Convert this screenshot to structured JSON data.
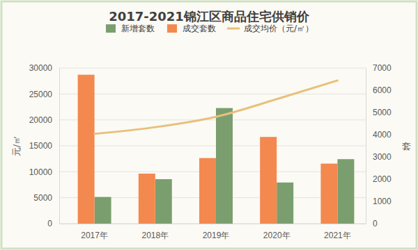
{
  "chart_data": {
    "type": "bar",
    "title": "2017-2021锦江区商品住宅供销价",
    "y_label": "元/㎡",
    "y2_label": "套",
    "categories": [
      "2017年",
      "2018年",
      "2019年",
      "2020年",
      "2021年"
    ],
    "series": [
      {
        "name": "新增套数",
        "type": "bar",
        "axis": "y2",
        "color": "#7b9e6f",
        "values": [
          1200,
          2000,
          5200,
          1850,
          2900
        ]
      },
      {
        "name": "成交套数",
        "type": "bar",
        "axis": "y2",
        "color": "#f3894f",
        "values": [
          6700,
          2250,
          2950,
          3900,
          2700
        ]
      },
      {
        "name": "成交均价（元/㎡）",
        "type": "line",
        "color": "#e8c07c",
        "values": [
          17300,
          18600,
          20600,
          24000,
          27600
        ]
      }
    ],
    "ylim": [
      0,
      30000
    ],
    "yticks": [
      0,
      5000,
      10000,
      15000,
      20000,
      25000,
      30000
    ],
    "y2lim": [
      0,
      7000
    ],
    "y2ticks": [
      0,
      1000,
      2000,
      3000,
      4000,
      5000,
      6000,
      7000
    ],
    "grid": true,
    "legend": "top"
  }
}
